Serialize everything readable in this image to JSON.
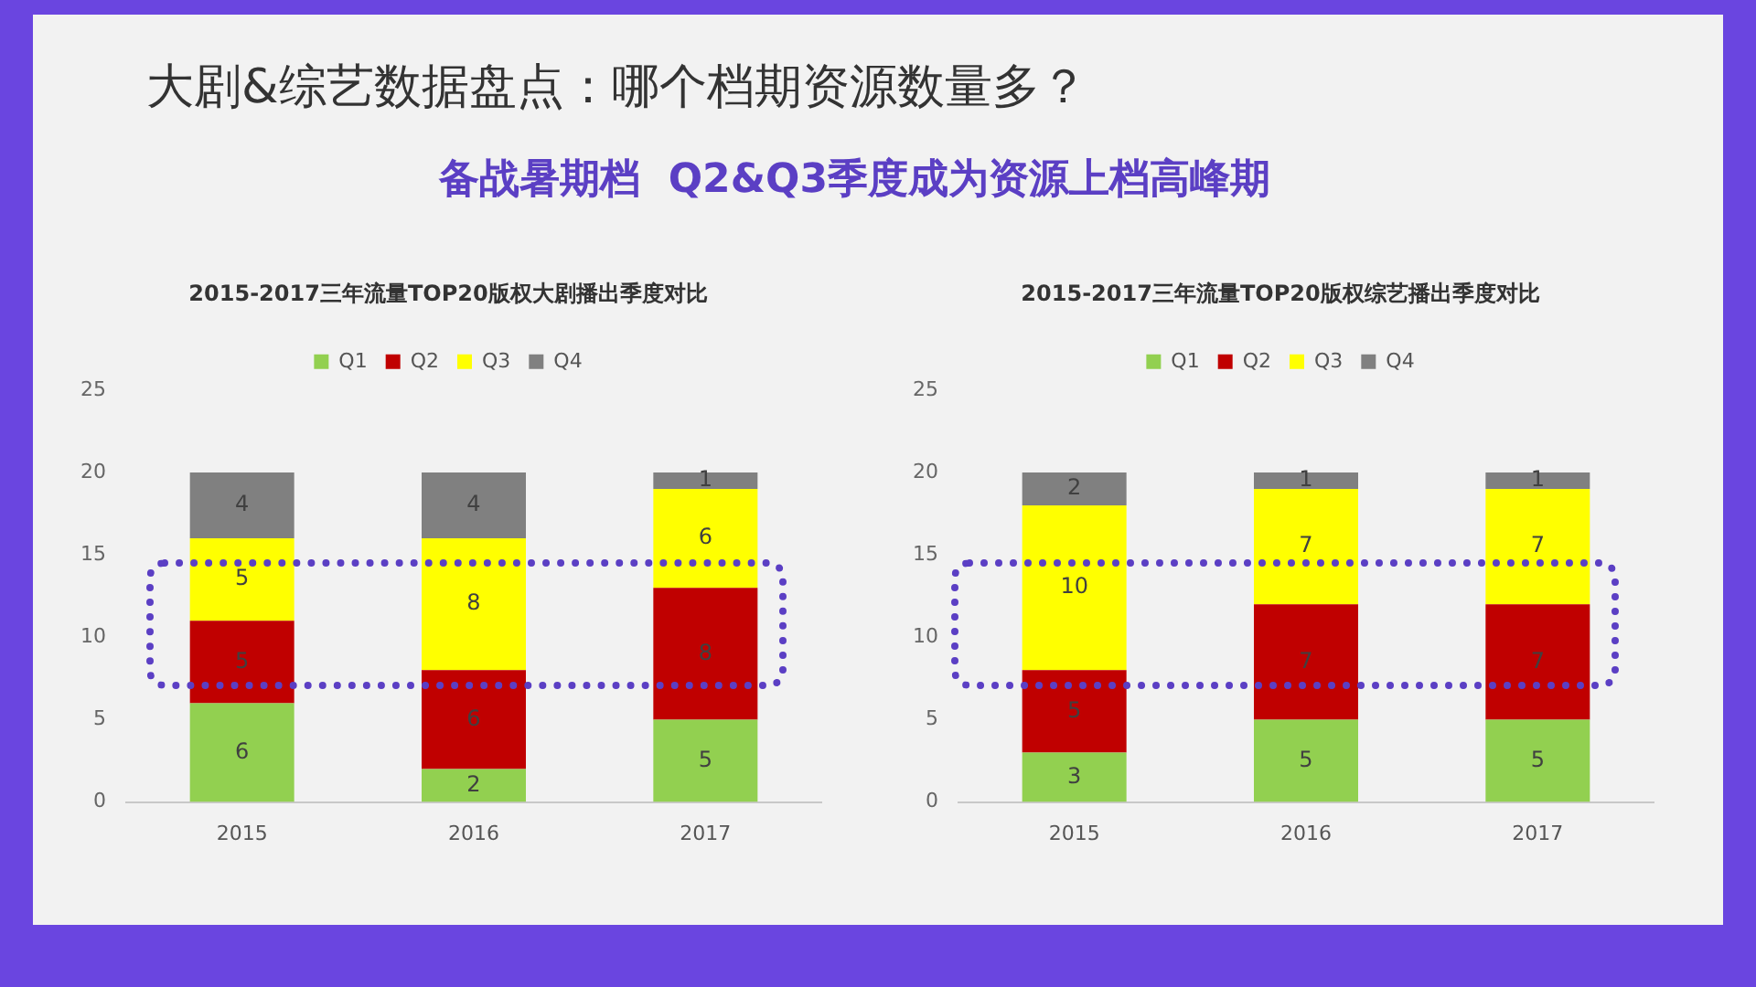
{
  "chart_data": [
    {
      "type": "other",
      "title": "大剧&综艺数据盘点：哪个档期资源数量多？",
      "subtitle": "备战暑期档  Q2&Q3季度成为资源上档高峰期"
    },
    {
      "type": "bar",
      "title": "2015-2017三年流量TOP20版权大剧播出季度对比",
      "categories": [
        "2015",
        "2016",
        "2017"
      ],
      "stacked": true,
      "data_labels": true,
      "legend": "top",
      "grid": false,
      "ylim": [
        0,
        25
      ],
      "yticks": [
        0,
        5,
        10,
        15,
        20,
        25
      ],
      "series": [
        {
          "name": "Q1",
          "color": "#92d050",
          "values": [
            6,
            2,
            5
          ]
        },
        {
          "name": "Q2",
          "color": "#c00000",
          "values": [
            5,
            6,
            8
          ]
        },
        {
          "name": "Q3",
          "color": "#ffff00",
          "values": [
            5,
            8,
            6
          ]
        },
        {
          "name": "Q4",
          "color": "#808080",
          "values": [
            4,
            4,
            1
          ]
        }
      ]
    },
    {
      "type": "bar",
      "title": "2015-2017三年流量TOP20版权综艺播出季度对比",
      "categories": [
        "2015",
        "2016",
        "2017"
      ],
      "stacked": true,
      "data_labels": true,
      "legend": "top",
      "grid": false,
      "ylim": [
        0,
        25
      ],
      "yticks": [
        0,
        5,
        10,
        15,
        20,
        25
      ],
      "series": [
        {
          "name": "Q1",
          "color": "#92d050",
          "values": [
            3,
            5,
            5
          ]
        },
        {
          "name": "Q2",
          "color": "#c00000",
          "values": [
            5,
            7,
            7
          ]
        },
        {
          "name": "Q3",
          "color": "#ffff00",
          "values": [
            10,
            7,
            7
          ]
        },
        {
          "name": "Q4",
          "color": "#808080",
          "values": [
            2,
            1,
            1
          ]
        }
      ]
    }
  ]
}
